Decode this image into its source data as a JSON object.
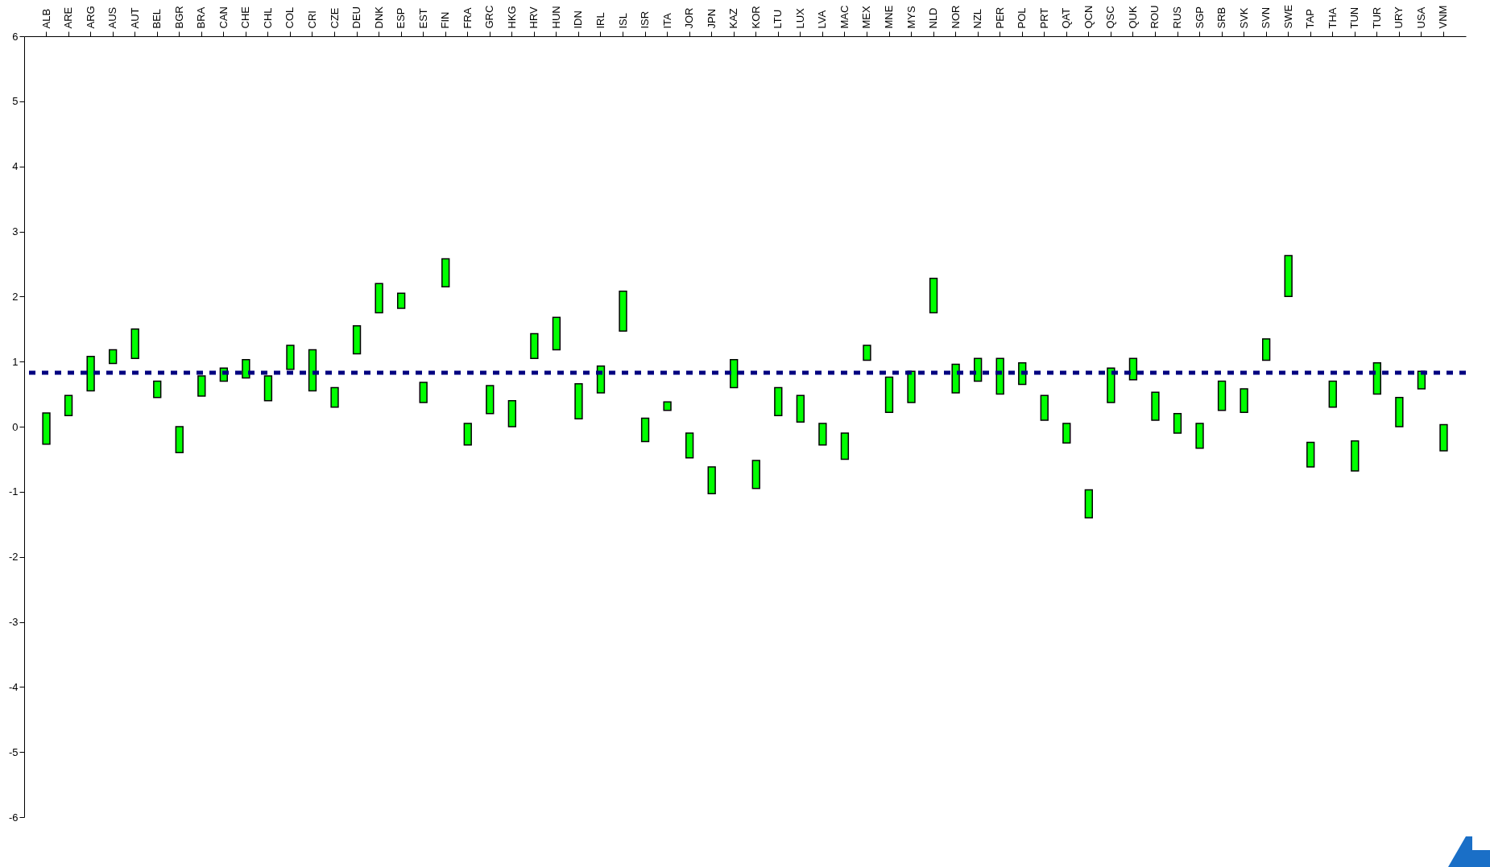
{
  "chart_data": {
    "type": "bar",
    "categories": [
      "ALB",
      "ARE",
      "ARG",
      "AUS",
      "AUT",
      "BEL",
      "BGR",
      "BRA",
      "CAN",
      "CHE",
      "CHL",
      "COL",
      "CRI",
      "CZE",
      "DEU",
      "DNK",
      "ESP",
      "EST",
      "FIN",
      "FRA",
      "GRC",
      "HKG",
      "HRV",
      "HUN",
      "IDN",
      "IRL",
      "ISL",
      "ISR",
      "ITA",
      "JOR",
      "JPN",
      "KAZ",
      "KOR",
      "LTU",
      "LUX",
      "LVA",
      "MAC",
      "MEX",
      "MNE",
      "MYS",
      "NLD",
      "NOR",
      "NZL",
      "PER",
      "POL",
      "PRT",
      "QAT",
      "QCN",
      "QSC",
      "QUK",
      "ROU",
      "RUS",
      "SGP",
      "SRB",
      "SVK",
      "SVN",
      "SWE",
      "TAP",
      "THA",
      "TUN",
      "TUR",
      "URY",
      "USA",
      "VNM"
    ],
    "base": [
      -0.27,
      0.17,
      0.55,
      0.97,
      1.05,
      0.45,
      -0.4,
      0.47,
      0.7,
      0.75,
      0.4,
      0.88,
      0.55,
      0.3,
      1.12,
      1.75,
      1.82,
      0.37,
      2.15,
      -0.28,
      0.2,
      0,
      1.05,
      1.18,
      0.12,
      0.52,
      1.47,
      -0.23,
      0.25,
      -0.48,
      -1.03,
      0.6,
      -0.95,
      0.17,
      0.07,
      -0.28,
      -0.5,
      1.02,
      0.22,
      0.37,
      1.75,
      0.52,
      0.7,
      0.5,
      0.65,
      0.1,
      -0.25,
      -1.4,
      0.37,
      0.72,
      0.1,
      -0.1,
      -0.33,
      0.25,
      0.22,
      1.02,
      2.0,
      -0.62,
      0.3,
      -0.68,
      0.5,
      0,
      0.58,
      -0.37
    ],
    "values": [
      0.48,
      0.31,
      0.53,
      0.21,
      0.45,
      0.25,
      0.4,
      0.31,
      0.2,
      0.28,
      0.38,
      0.37,
      0.63,
      0.3,
      0.43,
      0.45,
      0.23,
      0.31,
      0.43,
      0.33,
      0.43,
      0.4,
      0.38,
      0.5,
      0.54,
      0.41,
      0.61,
      0.36,
      0.13,
      0.38,
      0.41,
      0.43,
      0.43,
      0.43,
      0.41,
      0.33,
      0.4,
      0.23,
      0.54,
      0.48,
      0.53,
      0.44,
      0.35,
      0.55,
      0.33,
      0.38,
      0.3,
      0.43,
      0.53,
      0.33,
      0.43,
      0.3,
      0.38,
      0.45,
      0.36,
      0.33,
      0.63,
      0.38,
      0.4,
      0.46,
      0.48,
      0.45,
      0.27,
      0.4
    ],
    "color": "#00ff00",
    "ylim": [
      -6,
      6
    ],
    "yticks": [
      -6,
      -5,
      -4,
      -3,
      -2,
      -1,
      0,
      1,
      2,
      3,
      4,
      5,
      6
    ],
    "ref_lines": [
      {
        "axis": "y",
        "value": 0.83,
        "color": "#000080",
        "line_style": "dashed"
      }
    ],
    "grid": false
  }
}
